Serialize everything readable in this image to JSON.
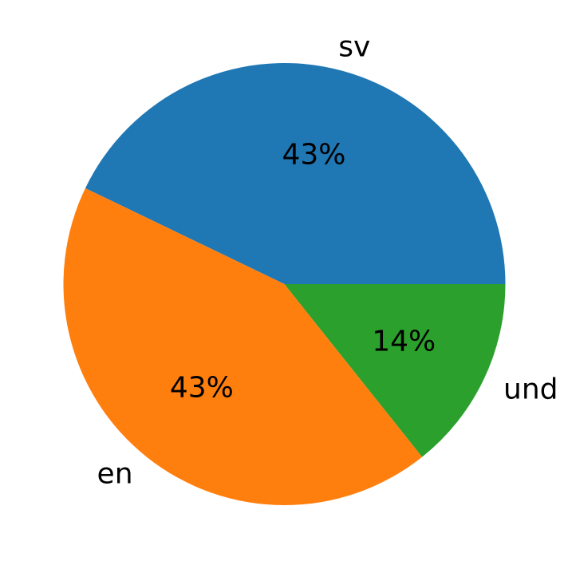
{
  "chart_data": {
    "type": "pie",
    "title": "",
    "start_angle_deg": 0,
    "direction": "counterclockwise",
    "slices": [
      {
        "label": "sv",
        "value": 3,
        "percent_label": "43%",
        "color": "#1f77b4"
      },
      {
        "label": "en",
        "value": 3,
        "percent_label": "43%",
        "color": "#ff7f0e"
      },
      {
        "label": "und",
        "value": 1,
        "percent_label": "14%",
        "color": "#2ca02c"
      }
    ]
  }
}
